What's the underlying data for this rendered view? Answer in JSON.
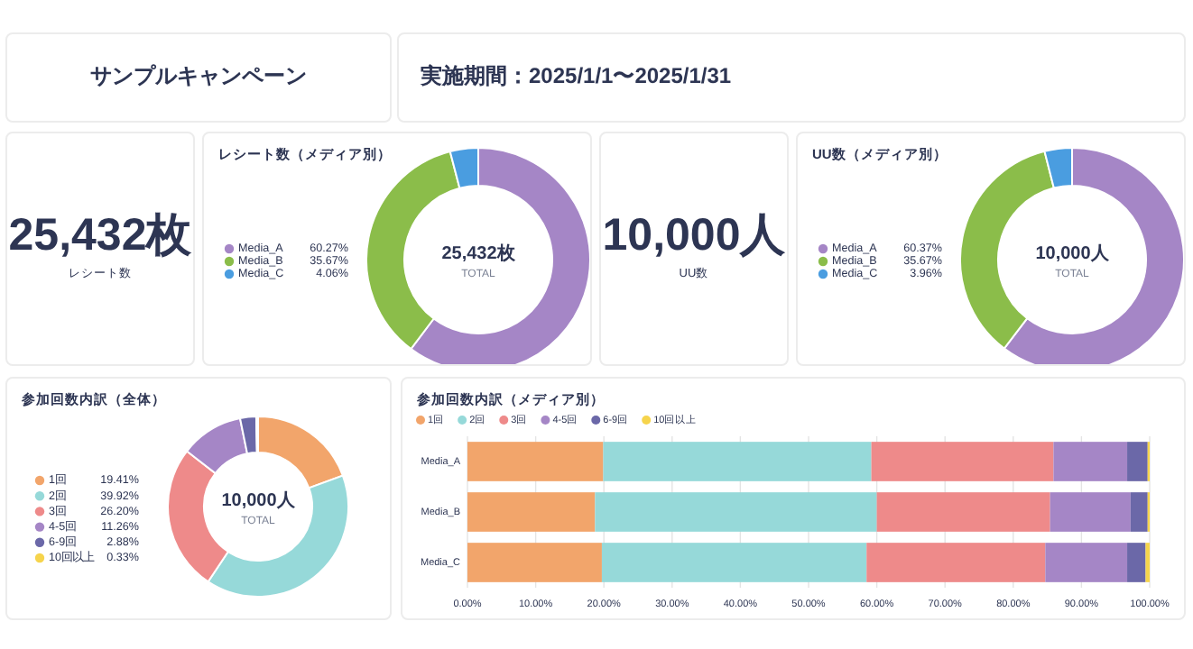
{
  "chart_data": [
    {
      "type": "other",
      "title": "サンプルキャンペーン"
    },
    {
      "type": "other",
      "title": "実施期間：2025/1/1〜2025/1/31"
    },
    {
      "type": "other",
      "annotations": [
        "25,432枚",
        "レシート数"
      ]
    },
    {
      "type": "donut",
      "title": "レシート数（メディア別）",
      "categories": [
        "Media_A",
        "Media_B",
        "Media_C"
      ],
      "values": [
        60.27,
        35.67,
        4.06
      ],
      "colors": [
        "#a586c6",
        "#8bbd4a",
        "#4a9de0"
      ],
      "value_labels": [
        "60.27%",
        "35.67%",
        "4.06%"
      ],
      "annotations": [
        "25,432枚",
        "TOTAL"
      ],
      "legend": "left"
    },
    {
      "type": "other",
      "annotations": [
        "10,000人",
        "UU数"
      ]
    },
    {
      "type": "donut",
      "title": "UU数（メディア別）",
      "categories": [
        "Media_A",
        "Media_B",
        "Media_C"
      ],
      "values": [
        60.37,
        35.67,
        3.96
      ],
      "colors": [
        "#a586c6",
        "#8bbd4a",
        "#4a9de0"
      ],
      "value_labels": [
        "60.37%",
        "35.67%",
        "3.96%"
      ],
      "annotations": [
        "10,000人",
        "TOTAL"
      ],
      "legend": "left"
    },
    {
      "type": "donut",
      "title": "参加回数内訳（全体）",
      "categories": [
        "1回",
        "2回",
        "3回",
        "4-5回",
        "6-9回",
        "10回以上"
      ],
      "values": [
        19.41,
        39.92,
        26.2,
        11.26,
        2.88,
        0.33
      ],
      "colors": [
        "#f2a56b",
        "#96d9d9",
        "#ee8a8a",
        "#a586c6",
        "#6b68a8",
        "#f6d44c"
      ],
      "value_labels": [
        "19.41%",
        "39.92%",
        "26.20%",
        "11.26%",
        "2.88%",
        "0.33%"
      ],
      "annotations": [
        "10,000人",
        "TOTAL"
      ],
      "legend": "left"
    },
    {
      "type": "bar",
      "title": "参加回数内訳（メディア別）",
      "orientation": "horizontal",
      "stacked": true,
      "categories": [
        "Media_A",
        "Media_B",
        "Media_C"
      ],
      "series": [
        {
          "name": "1回",
          "color": "#f2a56b",
          "values": [
            19.9,
            18.7,
            19.7
          ]
        },
        {
          "name": "2回",
          "color": "#96d9d9",
          "values": [
            39.3,
            41.3,
            38.8
          ]
        },
        {
          "name": "3回",
          "color": "#ee8a8a",
          "values": [
            26.7,
            25.4,
            26.2
          ]
        },
        {
          "name": "4-5回",
          "color": "#a586c6",
          "values": [
            10.8,
            11.8,
            12.0
          ]
        },
        {
          "name": "6-9回",
          "color": "#6b68a8",
          "values": [
            3.0,
            2.5,
            2.7
          ]
        },
        {
          "name": "10回以上",
          "color": "#f6d44c",
          "values": [
            0.3,
            0.3,
            0.6
          ]
        }
      ],
      "xlim": [
        0,
        100
      ],
      "xticks": [
        {
          "value": 0,
          "label": "0.00%"
        },
        {
          "value": 10,
          "label": "10.00%"
        },
        {
          "value": 20,
          "label": "20.00%"
        },
        {
          "value": 30,
          "label": "30.00%"
        },
        {
          "value": 40,
          "label": "40.00%"
        },
        {
          "value": 50,
          "label": "50.00%"
        },
        {
          "value": 60,
          "label": "60.00%"
        },
        {
          "value": 70,
          "label": "70.00%"
        },
        {
          "value": 80,
          "label": "80.00%"
        },
        {
          "value": 90,
          "label": "90.00%"
        },
        {
          "value": 100,
          "label": "100.00%"
        }
      ],
      "grid": "x",
      "legend": "top"
    }
  ]
}
